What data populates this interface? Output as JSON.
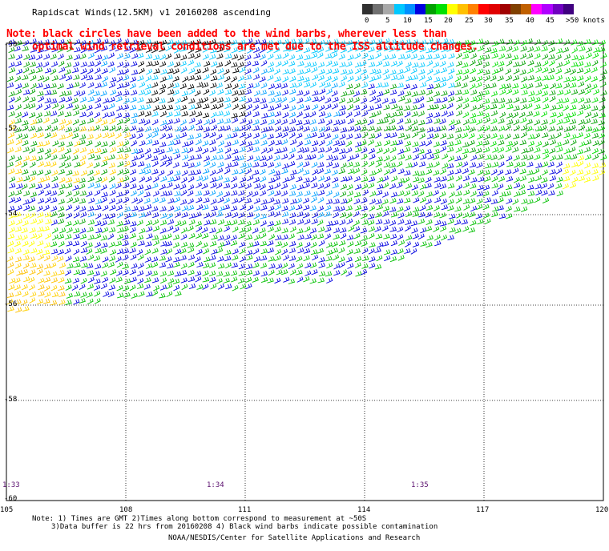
{
  "title": "Rapidscat Winds(12.5KM) v1 20160208 ascending",
  "note_line1": "Note: black circles have been added to the wind barbs, wherever less than",
  "note_line2": "optimal wind retrieval conditions are met due to the ISS altitude changes.",
  "colorbar": {
    "labels": [
      "0",
      "5",
      "10",
      "15",
      "20",
      "25",
      "30",
      "35",
      "40",
      "45",
      ">50 knots"
    ],
    "colors": [
      "#303030",
      "#707070",
      "#a8a8a8",
      "#00c8ff",
      "#0090ff",
      "#0000e0",
      "#00a000",
      "#00e000",
      "#ffff00",
      "#ffc000",
      "#ff8000",
      "#ff0000",
      "#e00000",
      "#a00000",
      "#804000",
      "#c06000",
      "#ff00ff",
      "#b000ff",
      "#7000c0",
      "#400080"
    ]
  },
  "lat_labels": [
    "-50",
    "-52",
    "-54",
    "-56",
    "-58",
    "-60"
  ],
  "lon_labels": [
    "105",
    "108",
    "111",
    "114",
    "117",
    "120"
  ],
  "time_labels": [
    "1:33",
    "1:34",
    "1:35"
  ],
  "footer": {
    "line1": "Note: 1) Times are GMT 2)Times along bottom correspond to measurement at ~50S",
    "line2": "3)Data buffer is 22 hrs from 20160208 4) Black wind barbs indicate possible contamination",
    "line3": "NOAA/NESDIS/Center for Satellite Applications and Research"
  }
}
